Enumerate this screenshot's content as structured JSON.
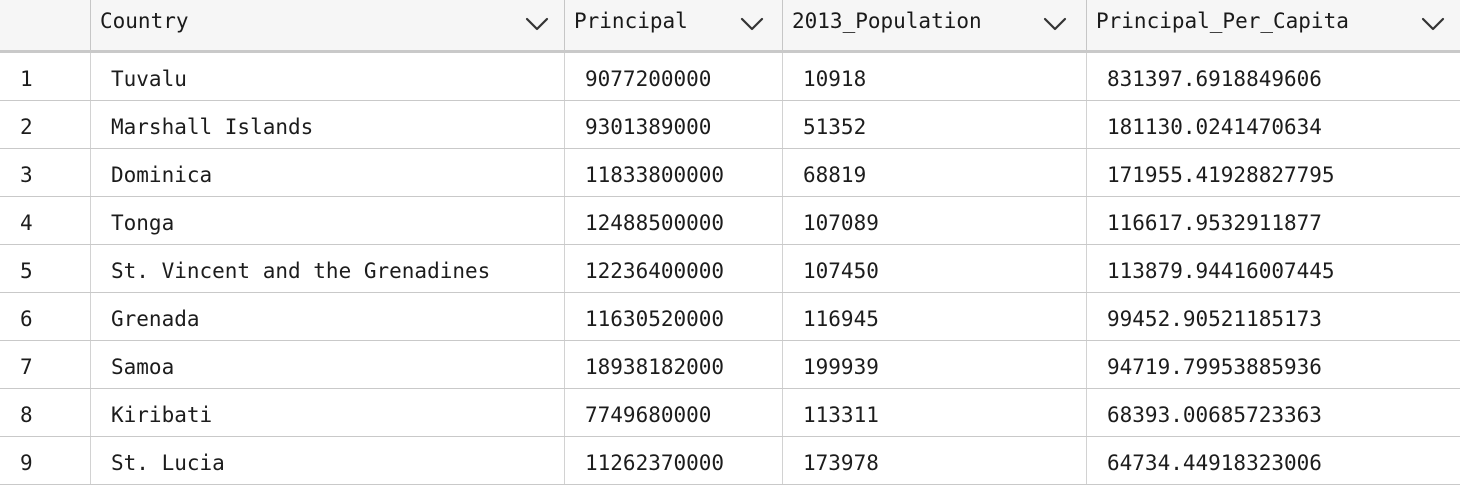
{
  "columns": [
    {
      "label": ""
    },
    {
      "label": "Country"
    },
    {
      "label": "Principal"
    },
    {
      "label": "2013_Population"
    },
    {
      "label": "Principal_Per_Capita"
    }
  ],
  "icons": {
    "sort": "chevron-down-icon"
  },
  "colors": {
    "header_bg": "#f6f6f6",
    "grid_line": "#c9c9c9",
    "text": "#1c1c1c"
  },
  "rows": [
    {
      "index": "1",
      "country": "Tuvalu",
      "principal": "9077200000",
      "population": "10918",
      "per_capita": "831397.6918849606"
    },
    {
      "index": "2",
      "country": "Marshall Islands",
      "principal": "9301389000",
      "population": "51352",
      "per_capita": "181130.0241470634"
    },
    {
      "index": "3",
      "country": "Dominica",
      "principal": "11833800000",
      "population": "68819",
      "per_capita": "171955.41928827795"
    },
    {
      "index": "4",
      "country": "Tonga",
      "principal": "12488500000",
      "population": "107089",
      "per_capita": "116617.9532911877"
    },
    {
      "index": "5",
      "country": "St. Vincent and the Grenadines",
      "principal": "12236400000",
      "population": "107450",
      "per_capita": "113879.94416007445"
    },
    {
      "index": "6",
      "country": "Grenada",
      "principal": "11630520000",
      "population": "116945",
      "per_capita": "99452.90521185173"
    },
    {
      "index": "7",
      "country": "Samoa",
      "principal": "18938182000",
      "population": "199939",
      "per_capita": "94719.79953885936"
    },
    {
      "index": "8",
      "country": "Kiribati",
      "principal": "7749680000",
      "population": "113311",
      "per_capita": "68393.00685723363"
    },
    {
      "index": "9",
      "country": "St. Lucia",
      "principal": "11262370000",
      "population": "173978",
      "per_capita": "64734.44918323006"
    }
  ]
}
